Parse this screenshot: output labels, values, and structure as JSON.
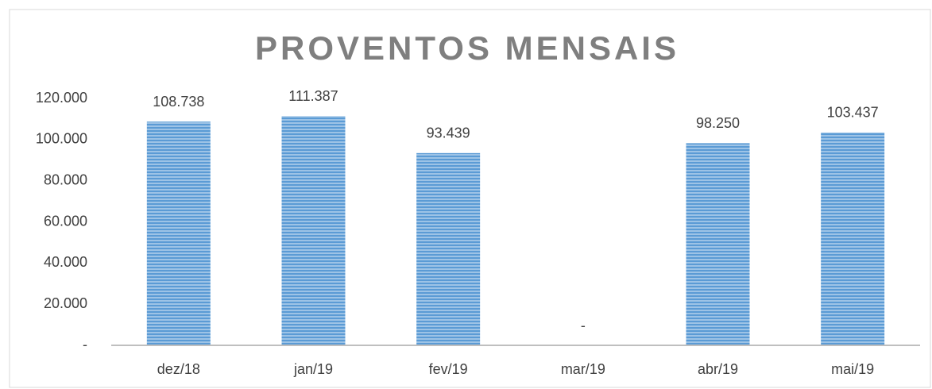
{
  "chart_data": {
    "type": "bar",
    "title": "PROVENTOS MENSAIS",
    "categories": [
      "dez/18",
      "jan/19",
      "fev/19",
      "mar/19",
      "abr/19",
      "mai/19"
    ],
    "values": [
      108738,
      111387,
      93439,
      0,
      98250,
      103437
    ],
    "value_labels": [
      "108.738",
      "111.387",
      "93.439",
      "-",
      "98.250",
      "103.437"
    ],
    "color": "#5b9bd5",
    "ylim": [
      0,
      120000
    ],
    "yticks": [
      {
        "value": 0,
        "label": "-"
      },
      {
        "value": 20000,
        "label": "20.000"
      },
      {
        "value": 40000,
        "label": "40.000"
      },
      {
        "value": 60000,
        "label": "60.000"
      },
      {
        "value": 80000,
        "label": "80.000"
      },
      {
        "value": 100000,
        "label": "100.000"
      },
      {
        "value": 120000,
        "label": "120.000"
      }
    ],
    "grid": false
  }
}
